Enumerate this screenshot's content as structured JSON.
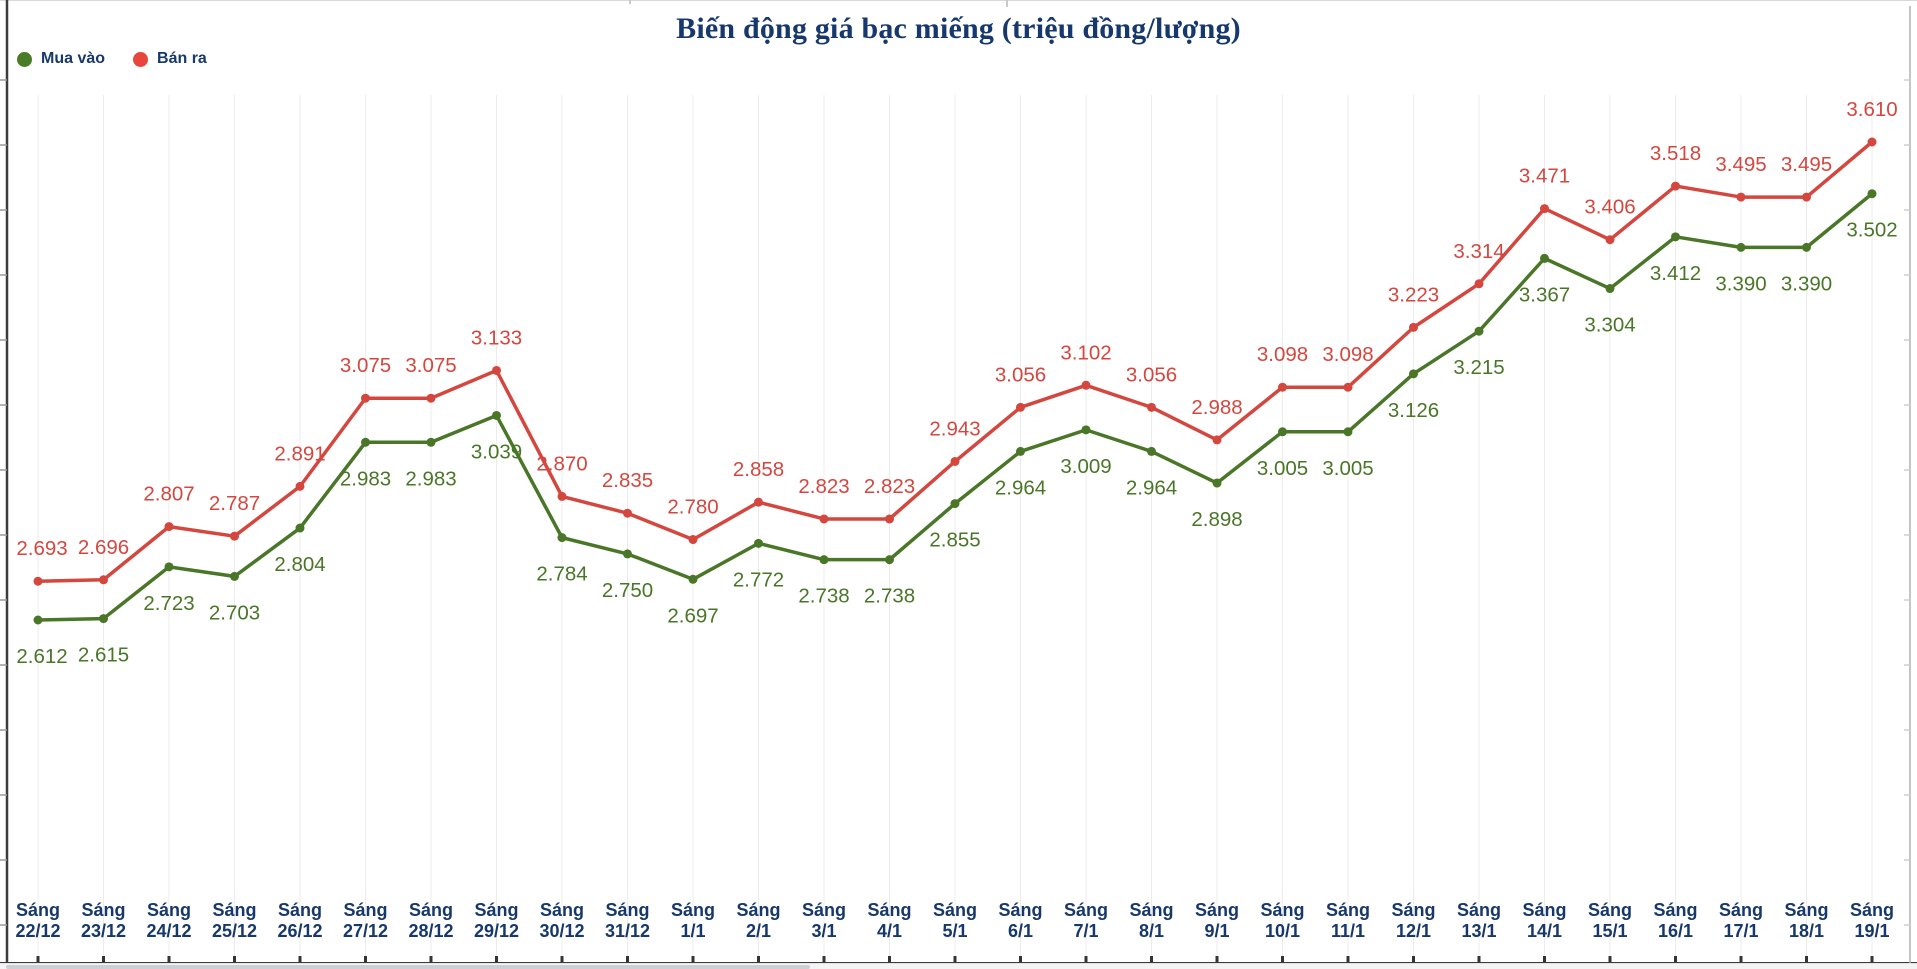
{
  "legend": {
    "items": [
      {
        "label": "Mua vào",
        "color": "#4a7c28"
      },
      {
        "label": "Bán ra",
        "color": "#e8463d"
      }
    ]
  },
  "chart_data": {
    "type": "line",
    "title": "Biến động giá bạc miếng (triệu đồng/lượng)",
    "x_prefix": "Sáng",
    "categories": [
      "22/12",
      "23/12",
      "24/12",
      "25/12",
      "26/12",
      "27/12",
      "28/12",
      "29/12",
      "30/12",
      "31/12",
      "1/1",
      "2/1",
      "3/1",
      "4/1",
      "5/1",
      "6/1",
      "7/1",
      "8/1",
      "9/1",
      "10/1",
      "11/1",
      "12/1",
      "13/1",
      "14/1",
      "15/1",
      "16/1",
      "17/1",
      "18/1",
      "19/1"
    ],
    "series": [
      {
        "name": "Mua vào",
        "color": "#4a7628",
        "label_position": "below",
        "values": [
          2.612,
          2.615,
          2.723,
          2.703,
          2.804,
          2.983,
          2.983,
          3.039,
          2.784,
          2.75,
          2.697,
          2.772,
          2.738,
          2.738,
          2.855,
          2.964,
          3.009,
          2.964,
          2.898,
          3.005,
          3.005,
          3.126,
          3.215,
          3.367,
          3.304,
          3.412,
          3.39,
          3.39,
          3.502
        ]
      },
      {
        "name": "Bán ra",
        "color": "#d4473f",
        "label_position": "above",
        "values": [
          2.693,
          2.696,
          2.807,
          2.787,
          2.891,
          3.075,
          3.075,
          3.133,
          2.87,
          2.835,
          2.78,
          2.858,
          2.823,
          2.823,
          2.943,
          3.056,
          3.102,
          3.056,
          2.988,
          3.098,
          3.098,
          3.223,
          3.314,
          3.471,
          3.406,
          3.518,
          3.495,
          3.495,
          3.61
        ]
      }
    ],
    "value_labels": "each point, 3 decimals",
    "ylim": [
      2.612,
      3.61
    ],
    "xlabel": "",
    "ylabel": "",
    "grid": "faint vertical line per category",
    "legend_position": "top-left"
  }
}
